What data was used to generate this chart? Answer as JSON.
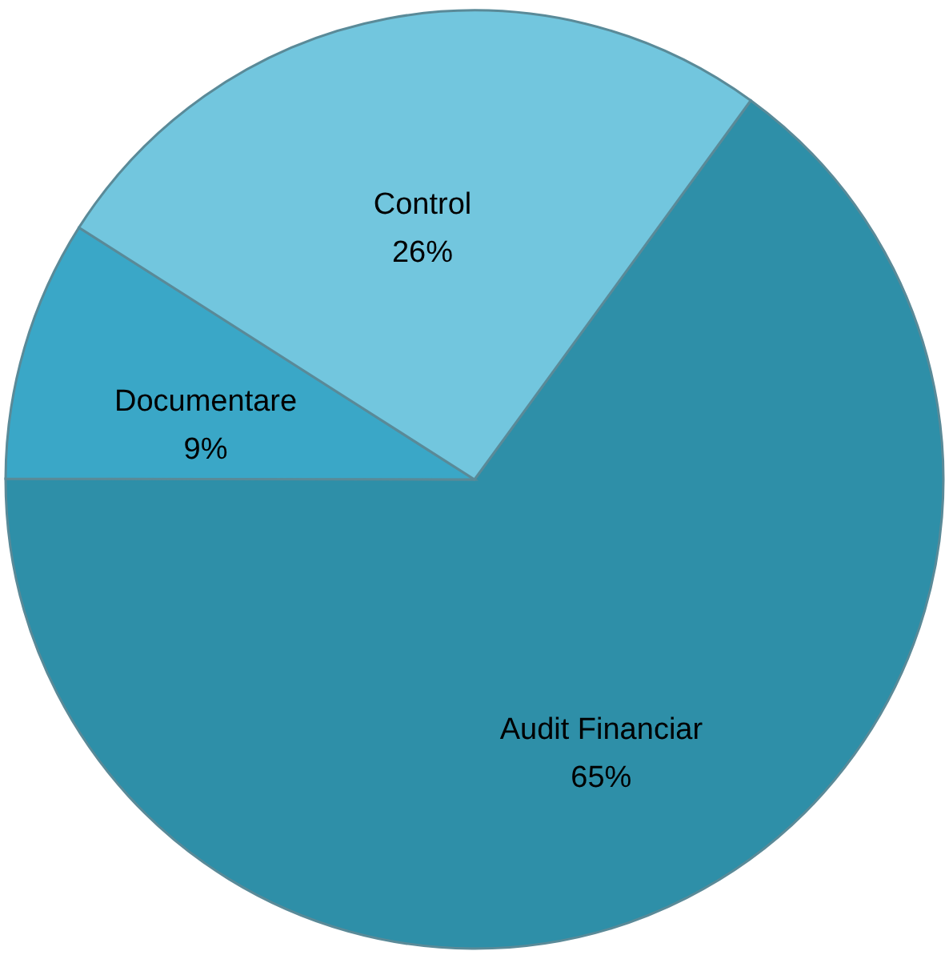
{
  "chart_data": {
    "type": "pie",
    "categories": [
      "Audit Financiar",
      "Documentare",
      "Control"
    ],
    "values": [
      65,
      9,
      26
    ],
    "value_labels": [
      "65%",
      "9%",
      "26%"
    ],
    "colors": [
      "#2e8fa8",
      "#3aa7c7",
      "#72c6de"
    ]
  }
}
